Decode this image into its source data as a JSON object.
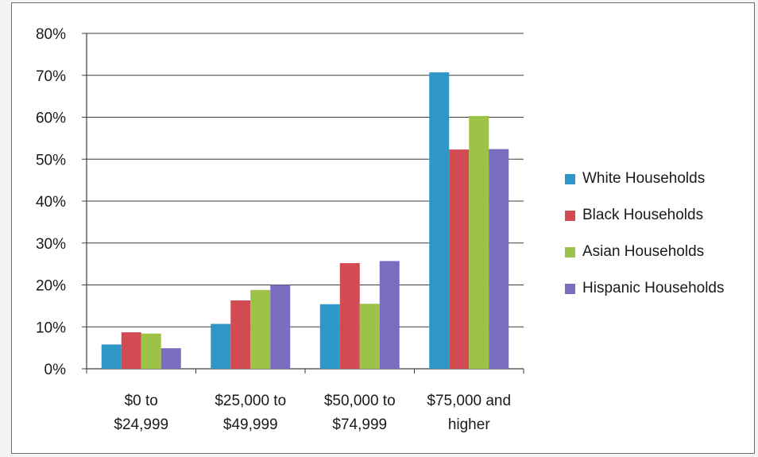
{
  "chart_data": {
    "type": "bar",
    "title": "",
    "xlabel": "",
    "ylabel": "",
    "categories": [
      [
        "$0 to",
        "$24,999"
      ],
      [
        "$25,000 to",
        "$49,999"
      ],
      [
        "$50,000 to",
        "$74,999"
      ],
      [
        "$75,000 and",
        "higher"
      ]
    ],
    "series": [
      {
        "name": "White Households",
        "color": "#2e97c8",
        "values": [
          5.8,
          10.7,
          15.4,
          70.7
        ]
      },
      {
        "name": "Black Households",
        "color": "#d24a52",
        "values": [
          8.7,
          16.3,
          25.2,
          52.3
        ]
      },
      {
        "name": "Asian Households",
        "color": "#9cc247",
        "values": [
          8.4,
          18.8,
          15.5,
          60.3
        ]
      },
      {
        "name": "Hispanic Households",
        "color": "#7a6cbf",
        "values": [
          4.9,
          20.0,
          25.7,
          52.4
        ]
      }
    ],
    "ylim": [
      0,
      80
    ],
    "yticks": [
      0,
      10,
      20,
      30,
      40,
      50,
      60,
      70,
      80
    ],
    "ytick_labels": [
      "0%",
      "10%",
      "20%",
      "30%",
      "40%",
      "50%",
      "60%",
      "70%",
      "80%"
    ],
    "grid": true,
    "legend_position": "right"
  }
}
